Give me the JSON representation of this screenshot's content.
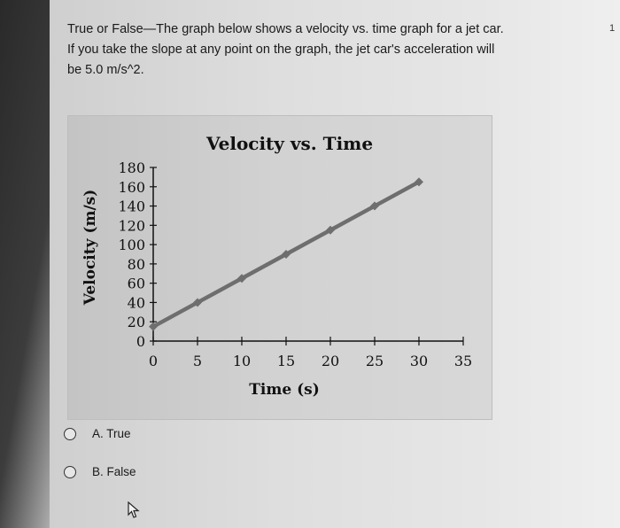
{
  "question": {
    "line1": "True or False—The graph below shows a velocity vs. time graph for a jet car.",
    "line2": "If you take the slope at any point on the graph, the jet car's acceleration will",
    "line3": "be 5.0 m/s^2.",
    "number": "1"
  },
  "options": [
    {
      "label": "A. True"
    },
    {
      "label": "B. False"
    }
  ],
  "icons": {
    "radio": "radio-circle-icon",
    "cursor": "mouse-pointer-icon"
  },
  "colors": {
    "line": "#6e6e6e",
    "axis": "#111111"
  },
  "chart_data": {
    "type": "line",
    "title": "Velocity vs. Time",
    "xlabel": "Time (s)",
    "ylabel": "Velocity (m/s)",
    "x_ticks": [
      "0",
      "5",
      "10",
      "15",
      "20",
      "25",
      "30",
      "35"
    ],
    "y_ticks": [
      "0",
      "20",
      "40",
      "60",
      "80",
      "100",
      "120",
      "140",
      "160",
      "180"
    ],
    "xlim": [
      0,
      35
    ],
    "ylim": [
      0,
      180
    ],
    "grid": false,
    "series": [
      {
        "x": [
          0,
          5,
          10,
          15,
          20,
          25,
          30
        ],
        "y": [
          15,
          40,
          65,
          90,
          115,
          140,
          165
        ]
      }
    ]
  }
}
